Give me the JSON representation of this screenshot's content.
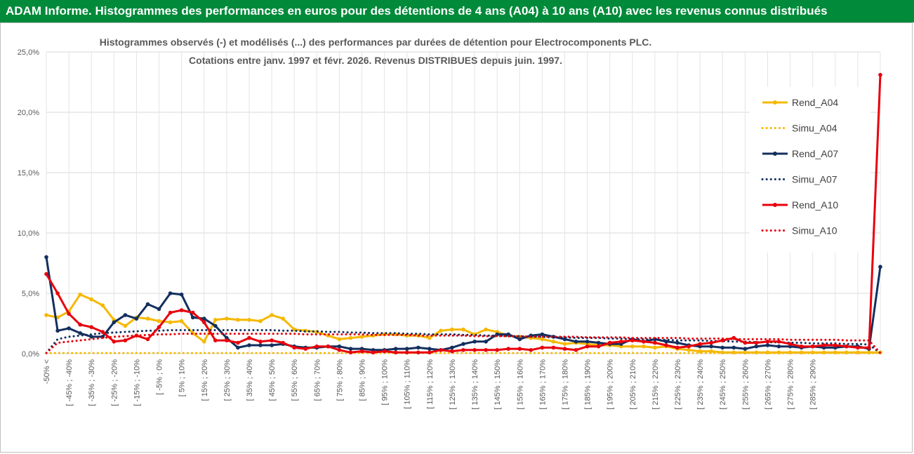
{
  "header": {
    "title": "ADAM Informe. Histogrammes des performances en euros pour des détentions de 4 ans (A04) à 10 ans (A10) avec les revenus connus distribués"
  },
  "colors": {
    "banner_bg": "#008a3a",
    "banner_text": "#ffffff",
    "A04": "#f5b800",
    "A07": "#132f5e",
    "A10": "#e8000b",
    "grid": "#d9d9d9"
  },
  "chart_data": {
    "type": "line",
    "title_lines": [
      "Histogrammes observés (-) et modélisés (...) des performances par durées de détention pour Electrocomponents PLC.",
      "Cotations entre janv. 1997 et févr. 2026. Revenus DISTRIBUES depuis juin. 1997."
    ],
    "xlabel": "",
    "ylabel": "",
    "ylim": [
      0,
      25
    ],
    "yticks": [
      "0,0%",
      "5,0%",
      "10,0%",
      "15,0%",
      "20,0%",
      "25,0%"
    ],
    "grid": true,
    "legend_position": "right",
    "x_labels": [
      "-50% <",
      "[ -45% ; -40%",
      "[ -35% ; -30%",
      "[ -25% ; -20%",
      "[ -15% ; -10%",
      "[ -5% ; 0%",
      "[ 5% ; 10%",
      "[ 15% ; 20%",
      "[ 25% ; 30%",
      "[ 35% ; 40%",
      "[ 45% ; 50%",
      "[ 55% ; 60%",
      "[ 65% ; 70%",
      "[ 75% ; 80%",
      "[ 85% ; 90%",
      "[ 95% ; 100%",
      "[ 105% ; 110%",
      "[ 115% ; 120%",
      "[ 125% ; 130%",
      "[ 135% ; 140%",
      "[ 145% ; 150%",
      "[ 155% ; 160%",
      "[ 165% ; 170%",
      "[ 175% ; 180%",
      "[ 185% ; 190%",
      "[ 195% ; 200%",
      "[ 205% ; 210%",
      "[ 215% ; 220%",
      "[ 225% ; 230%",
      "[ 235% ; 240%",
      "[ 245% ; 250%",
      "[ 255% ; 260%",
      "[ 265% ; 270%",
      "[ 275% ; 280%",
      "[ 285% ; 290%"
    ],
    "series": [
      {
        "name": "Rend_A04",
        "style": "solid",
        "color": "#f5b800",
        "values": [
          3.2,
          3.0,
          3.5,
          4.9,
          4.5,
          4.0,
          2.8,
          2.3,
          3.0,
          2.9,
          2.7,
          2.6,
          2.7,
          1.7,
          1.0,
          2.8,
          2.9,
          2.8,
          2.8,
          2.7,
          3.2,
          2.9,
          2.0,
          1.9,
          1.8,
          1.5,
          1.2,
          1.3,
          1.4,
          1.5,
          1.6,
          1.6,
          1.5,
          1.5,
          1.3,
          1.9,
          2.0,
          2.0,
          1.6,
          2.0,
          1.8,
          1.5,
          1.4,
          1.3,
          1.2,
          1.0,
          0.8,
          0.9,
          0.8,
          0.7,
          0.7,
          0.6,
          0.6,
          0.6,
          0.5,
          0.6,
          0.4,
          0.3,
          0.2,
          0.2,
          0.1,
          0.1,
          0.1,
          0.1,
          0.1,
          0.1,
          0.1,
          0.1,
          0.1,
          0.1,
          0.1,
          0.1,
          0.1,
          0.1,
          0.1
        ]
      },
      {
        "name": "Simu_A04",
        "style": "dotted",
        "color": "#f5b800",
        "values": [
          0.05,
          0.05,
          0.05,
          0.05,
          0.05,
          0.05,
          0.05,
          0.05,
          0.05,
          0.05,
          0.05,
          0.05,
          0.05,
          0.05,
          0.05,
          0.05,
          0.05,
          0.05,
          0.05,
          0.05,
          0.05,
          0.05,
          0.05,
          0.05,
          0.05,
          0.05,
          0.05,
          0.05,
          0.05,
          0.05,
          0.05,
          0.05,
          0.05,
          0.05,
          0.05,
          0.05,
          0.05,
          0.05,
          0.05,
          0.05,
          0.05,
          0.05,
          0.05,
          0.05,
          0.05,
          0.05,
          0.05,
          0.05,
          0.05,
          0.05,
          0.05,
          0.05,
          0.05,
          0.05,
          0.05,
          0.05,
          0.05,
          0.05,
          0.05,
          0.05,
          0.05,
          0.05,
          0.05,
          0.05,
          0.05,
          0.05,
          0.05,
          0.05,
          0.05,
          0.05,
          0.05,
          0.05,
          0.05,
          0.05,
          0.05
        ]
      },
      {
        "name": "Rend_A07",
        "style": "solid",
        "color": "#132f5e",
        "values": [
          8.0,
          1.9,
          2.1,
          1.7,
          1.4,
          1.4,
          2.6,
          3.2,
          2.9,
          4.1,
          3.7,
          5.0,
          4.9,
          3.0,
          2.9,
          2.3,
          1.3,
          0.5,
          0.7,
          0.7,
          0.7,
          0.8,
          0.6,
          0.5,
          0.5,
          0.6,
          0.6,
          0.4,
          0.4,
          0.3,
          0.3,
          0.4,
          0.4,
          0.5,
          0.4,
          0.3,
          0.5,
          0.8,
          1.0,
          1.0,
          1.6,
          1.6,
          1.2,
          1.5,
          1.6,
          1.4,
          1.2,
          1.0,
          1.0,
          0.9,
          0.8,
          0.8,
          1.2,
          1.0,
          1.2,
          1.0,
          0.9,
          0.7,
          0.6,
          0.6,
          0.5,
          0.5,
          0.4,
          0.6,
          0.7,
          0.6,
          0.6,
          0.5,
          0.6,
          0.5,
          0.5,
          0.6,
          0.6,
          0.4,
          7.2
        ]
      },
      {
        "name": "Simu_A07",
        "style": "dotted",
        "color": "#132f5e",
        "values": [
          0.05,
          1.2,
          1.4,
          1.5,
          1.6,
          1.7,
          1.75,
          1.8,
          1.85,
          1.9,
          1.9,
          1.95,
          1.95,
          1.95,
          1.95,
          1.95,
          1.95,
          1.95,
          1.95,
          1.95,
          1.95,
          1.9,
          1.9,
          1.85,
          1.85,
          1.8,
          1.8,
          1.75,
          1.75,
          1.7,
          1.7,
          1.7,
          1.65,
          1.65,
          1.6,
          1.6,
          1.6,
          1.55,
          1.55,
          1.5,
          1.5,
          1.45,
          1.45,
          1.4,
          1.4,
          1.35,
          1.35,
          1.3,
          1.3,
          1.3,
          1.25,
          1.25,
          1.2,
          1.2,
          1.15,
          1.15,
          1.1,
          1.1,
          1.1,
          1.05,
          1.05,
          1.0,
          1.0,
          0.95,
          0.95,
          0.95,
          0.9,
          0.9,
          0.85,
          0.85,
          0.85,
          0.8,
          0.8,
          0.75,
          0.05
        ]
      },
      {
        "name": "Rend_A10",
        "style": "solid",
        "color": "#e8000b",
        "values": [
          6.6,
          5.0,
          3.3,
          2.4,
          2.2,
          1.8,
          1.0,
          1.1,
          1.5,
          1.2,
          2.2,
          3.4,
          3.6,
          3.4,
          2.6,
          1.1,
          1.1,
          0.9,
          1.3,
          1.0,
          1.1,
          0.9,
          0.5,
          0.4,
          0.6,
          0.6,
          0.3,
          0.1,
          0.2,
          0.1,
          0.2,
          0.1,
          0.1,
          0.1,
          0.1,
          0.3,
          0.2,
          0.3,
          0.3,
          0.3,
          0.3,
          0.4,
          0.4,
          0.3,
          0.5,
          0.5,
          0.4,
          0.3,
          0.6,
          0.6,
          0.9,
          1.0,
          1.1,
          1.0,
          0.9,
          0.7,
          0.5,
          0.6,
          0.8,
          0.9,
          1.1,
          1.3,
          0.9,
          0.9,
          1.0,
          1.0,
          0.8,
          0.6,
          0.6,
          0.7,
          0.7,
          0.6,
          0.5,
          0.5,
          23.1
        ]
      },
      {
        "name": "Simu_A10",
        "style": "dotted",
        "color": "#e8000b",
        "values": [
          0.05,
          0.9,
          1.0,
          1.1,
          1.2,
          1.3,
          1.4,
          1.45,
          1.5,
          1.55,
          1.6,
          1.6,
          1.65,
          1.65,
          1.65,
          1.65,
          1.65,
          1.65,
          1.65,
          1.65,
          1.65,
          1.65,
          1.65,
          1.6,
          1.6,
          1.6,
          1.6,
          1.6,
          1.6,
          1.55,
          1.55,
          1.55,
          1.55,
          1.5,
          1.5,
          1.5,
          1.5,
          1.5,
          1.45,
          1.45,
          1.45,
          1.45,
          1.45,
          1.4,
          1.4,
          1.4,
          1.4,
          1.4,
          1.35,
          1.35,
          1.35,
          1.35,
          1.3,
          1.3,
          1.3,
          1.3,
          1.3,
          1.25,
          1.25,
          1.25,
          1.25,
          1.2,
          1.2,
          1.2,
          1.2,
          1.2,
          1.15,
          1.15,
          1.15,
          1.15,
          1.15,
          1.1,
          1.1,
          1.1,
          0.05
        ]
      }
    ]
  }
}
